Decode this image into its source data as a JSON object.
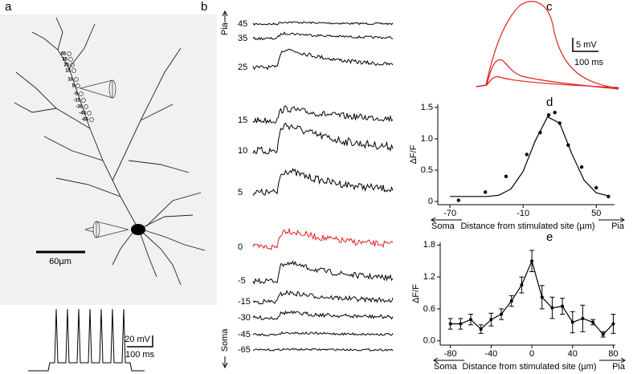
{
  "panel_labels": [
    "a",
    "b",
    "c",
    "d",
    "e"
  ],
  "panel_a": {
    "site_labels": [
      "45",
      "35",
      "25",
      "15",
      "10",
      "5",
      "-5",
      "-15",
      "-30",
      "-45",
      "-65"
    ],
    "scale_bar": "60µm",
    "spike_scale": {
      "voltage": "20 mV",
      "time": "100 ms"
    }
  },
  "panel_b": {
    "top_label": "Pia",
    "bottom_label": "Soma",
    "trace_labels": [
      "45",
      "35",
      "25",
      "15",
      "10",
      "5",
      "0",
      "-5",
      "-15",
      "-30",
      "-45",
      "-65"
    ]
  },
  "panel_c": {
    "voltage": "5 mV",
    "time": "100 ms"
  },
  "chart_data": [
    {
      "type": "scatter",
      "y_label": "ΔF/F",
      "x_label": "Distance from stimulated site (µm)",
      "x_left_label": "Soma",
      "x_right_label": "Pia",
      "xlim": [
        -80,
        65
      ],
      "xticks": [
        -70,
        -10,
        50
      ],
      "ylim": [
        -0.05,
        1.55
      ],
      "yticks": [
        0,
        0.5,
        {
          "value": 1,
          "label": "1.0"
        },
        1.5
      ],
      "series": [
        {
          "kind": "scatter",
          "color": "#000000",
          "x": [
            -63,
            -41,
            -24,
            -7,
            4,
            11,
            16,
            20,
            27,
            38,
            50,
            60
          ],
          "values": [
            0.02,
            0.15,
            0.4,
            0.75,
            1.1,
            1.38,
            1.42,
            1.25,
            0.9,
            0.55,
            0.22,
            0.08
          ]
        },
        {
          "kind": "line",
          "color": "#000000",
          "x": [
            -70,
            -60,
            -50,
            -40,
            -30,
            -20,
            -10,
            0,
            10,
            20,
            30,
            40,
            50,
            60
          ],
          "values": [
            0.08,
            0.08,
            0.08,
            0.08,
            0.1,
            0.2,
            0.48,
            0.97,
            1.35,
            1.25,
            0.76,
            0.34,
            0.14,
            0.09
          ]
        }
      ]
    },
    {
      "type": "line",
      "y_label": "ΔF/F",
      "x_label": "Distance from stimulated site (µm)",
      "x_left_label": "Soma",
      "x_right_label": "Pia",
      "xlim": [
        -90,
        82
      ],
      "xticks": [
        -80,
        -40,
        0,
        40,
        80
      ],
      "ylim": [
        -0.08,
        1.85
      ],
      "yticks": [
        {
          "value": 0,
          "label": "0.0"
        },
        0.6,
        1.2,
        1.8
      ],
      "series": [
        {
          "kind": "line",
          "color": "#000000",
          "x": [
            -80,
            -70,
            -60,
            -50,
            -40,
            -30,
            -20,
            -10,
            0,
            10,
            20,
            30,
            40,
            50,
            60,
            70,
            80
          ],
          "values": [
            0.32,
            0.32,
            0.4,
            0.22,
            0.4,
            0.5,
            0.75,
            1.05,
            1.5,
            0.82,
            0.62,
            0.65,
            0.35,
            0.42,
            0.35,
            0.12,
            0.32
          ],
          "errors": [
            0.1,
            0.1,
            0.1,
            0.08,
            0.12,
            0.1,
            0.1,
            0.15,
            0.2,
            0.22,
            0.2,
            0.15,
            0.2,
            0.25,
            0.05,
            0.05,
            0.18
          ]
        }
      ]
    }
  ]
}
